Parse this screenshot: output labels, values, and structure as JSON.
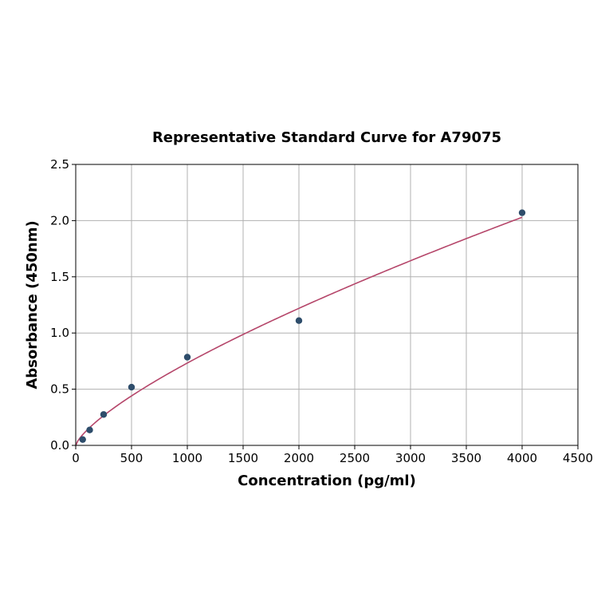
{
  "chart_data": {
    "type": "scatter",
    "title": "Representative Standard Curve for A79075",
    "xlabel": "Concentration (pg/ml)",
    "ylabel": "Absorbance (450nm)",
    "xlim": [
      0,
      4500
    ],
    "ylim": [
      0,
      2.5
    ],
    "xticks": [
      0,
      500,
      1000,
      1500,
      2000,
      2500,
      3000,
      3500,
      4000,
      4500
    ],
    "yticks": [
      0.0,
      0.5,
      1.0,
      1.5,
      2.0,
      2.5
    ],
    "grid": true,
    "points": {
      "x": [
        62.5,
        125,
        250,
        500,
        1000,
        2000,
        4000
      ],
      "y": [
        0.052,
        0.137,
        0.275,
        0.518,
        0.785,
        1.11,
        2.07
      ],
      "color": "#2e4d6b"
    },
    "fit": {
      "type": "power",
      "a": 0.00457,
      "b": 0.735,
      "x_range": [
        0,
        4000
      ],
      "color": "#b5466a"
    }
  }
}
